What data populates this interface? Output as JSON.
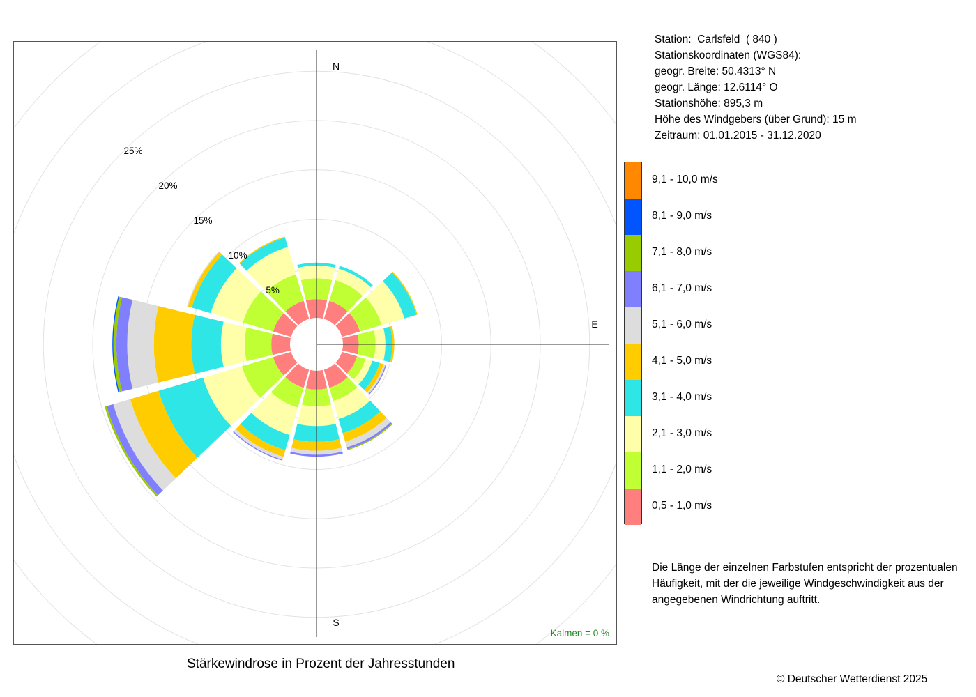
{
  "chart_data": {
    "type": "windrose",
    "unit": "%",
    "radial_ticks": [
      5,
      10,
      15,
      20,
      25
    ],
    "radial_tick_labels": [
      "5%",
      "10%",
      "15%",
      "20%",
      "25%"
    ],
    "compass_labels": {
      "N": "N",
      "E": "E",
      "S": "S"
    },
    "calm_label": "Kalmen  =  0 %",
    "directions_deg": [
      0,
      30,
      60,
      90,
      120,
      150,
      180,
      210,
      240,
      270,
      300,
      330
    ],
    "speed_classes": [
      {
        "label": "0,5 - 1,0 m/s",
        "color": "#ff7f7f"
      },
      {
        "label": "1,1 - 2,0 m/s",
        "color": "#bfff33"
      },
      {
        "label": "2,1 - 3,0 m/s",
        "color": "#ffffaa"
      },
      {
        "label": "3,1 - 4,0 m/s",
        "color": "#2ee6e6"
      },
      {
        "label": "4,1 - 5,0 m/s",
        "color": "#ffcc00"
      },
      {
        "label": "5,1 - 6,0 m/s",
        "color": "#dddddd"
      },
      {
        "label": "6,1 - 7,0 m/s",
        "color": "#8080ff"
      },
      {
        "label": "7,1 - 8,0 m/s",
        "color": "#99cc00"
      },
      {
        "label": "8,1 - 9,0 m/s",
        "color": "#0055ff"
      },
      {
        "label": "9,1 - 10,0 m/s",
        "color": "#ff8800"
      }
    ],
    "cumulative": [
      [
        1.9,
        4.0,
        5.3,
        5.6,
        5.6,
        5.6,
        5.6,
        5.6,
        5.6,
        5.6
      ],
      [
        1.9,
        4.1,
        5.3,
        5.6,
        5.6,
        5.6,
        5.6,
        5.6,
        5.6,
        5.6
      ],
      [
        1.9,
        4.2,
        6.6,
        7.9,
        8.0,
        8.0,
        8.0,
        8.0,
        8.0,
        8.0
      ],
      [
        1.6,
        3.3,
        4.3,
        5.0,
        5.2,
        5.2,
        5.2,
        5.2,
        5.2,
        5.2
      ],
      [
        1.6,
        2.5,
        3.2,
        4.0,
        4.4,
        4.6,
        4.7,
        4.7,
        4.7,
        4.7
      ],
      [
        1.9,
        3.3,
        5.2,
        6.7,
        7.6,
        8.2,
        8.4,
        8.5,
        8.5,
        8.5
      ],
      [
        1.9,
        3.6,
        5.6,
        7.2,
        8.1,
        8.5,
        8.7,
        8.7,
        8.7,
        8.7
      ],
      [
        1.9,
        4.0,
        6.9,
        8.5,
        9.2,
        9.5,
        9.6,
        9.6,
        9.6,
        9.6
      ],
      [
        1.9,
        5.2,
        9.3,
        14.0,
        17.0,
        18.8,
        19.5,
        19.7,
        19.7,
        19.7
      ],
      [
        1.9,
        4.6,
        7.0,
        10.0,
        13.8,
        16.5,
        17.6,
        17.9,
        18.0,
        18.0
      ],
      [
        1.9,
        5.1,
        8.5,
        10.5,
        10.9,
        11.0,
        11.0,
        11.0,
        11.0,
        11.0
      ],
      [
        1.9,
        4.7,
        7.6,
        8.6,
        8.7,
        8.7,
        8.7,
        8.7,
        8.7,
        8.7
      ]
    ]
  },
  "station": {
    "line1": "Station:  Carlsfeld  ( 840 )",
    "line2": "Stationskoordinaten (WGS84):",
    "line3": "geogr. Breite: 50.4313° N",
    "line4": "geogr. Länge: 12.6114° O",
    "line5": "Stationshöhe: 895,3 m",
    "line6": "Höhe des Windgebers (über Grund): 15 m",
    "line7": "Zeitraum: 01.01.2015 - 31.12.2020"
  },
  "legend_note": "Die Länge der einzelnen Farbstufen entspricht der prozentualen Häufigkeit, mit der die jeweilige Windgeschwindigkeit aus der angegebenen Windrichtung auftritt.",
  "caption": "Stärkewindrose in Prozent der Jahresstunden",
  "copyright": "© Deutscher Wetterdienst  2025"
}
